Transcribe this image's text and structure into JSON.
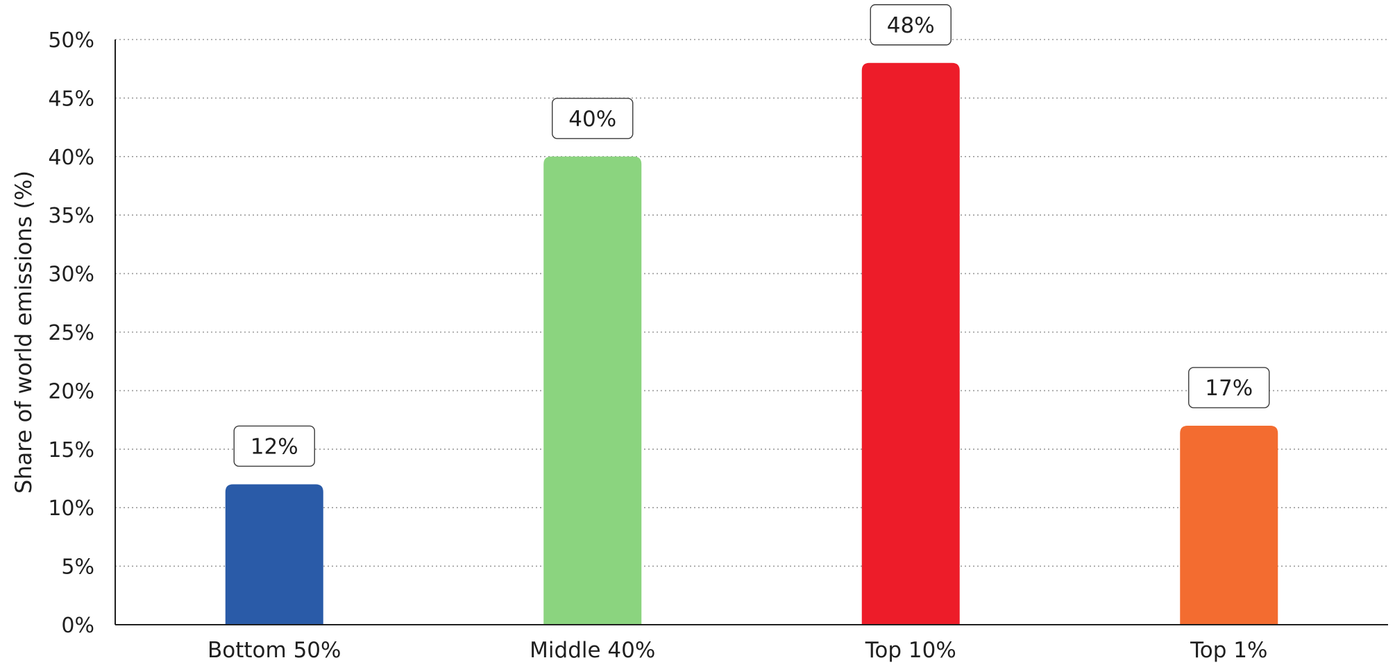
{
  "chart_data": {
    "type": "bar",
    "title": "",
    "xlabel": "",
    "ylabel": "Share of world emissions (%)",
    "categories": [
      "Bottom 50%",
      "Middle 40%",
      "Top 10%",
      "Top 1%"
    ],
    "values": [
      12,
      40,
      48,
      17
    ],
    "value_labels": [
      "12%",
      "40%",
      "48%",
      "17%"
    ],
    "colors": [
      "#2a5ba8",
      "#8bd47f",
      "#ed1c29",
      "#f36c30"
    ],
    "ylim": [
      0,
      50
    ],
    "yticks": [
      0,
      5,
      10,
      15,
      20,
      25,
      30,
      35,
      40,
      45,
      50
    ],
    "ytick_labels": [
      "0%",
      "5%",
      "10%",
      "15%",
      "20%",
      "25%",
      "30%",
      "35%",
      "40%",
      "45%",
      "50%"
    ],
    "grid": true,
    "legend": "none"
  }
}
